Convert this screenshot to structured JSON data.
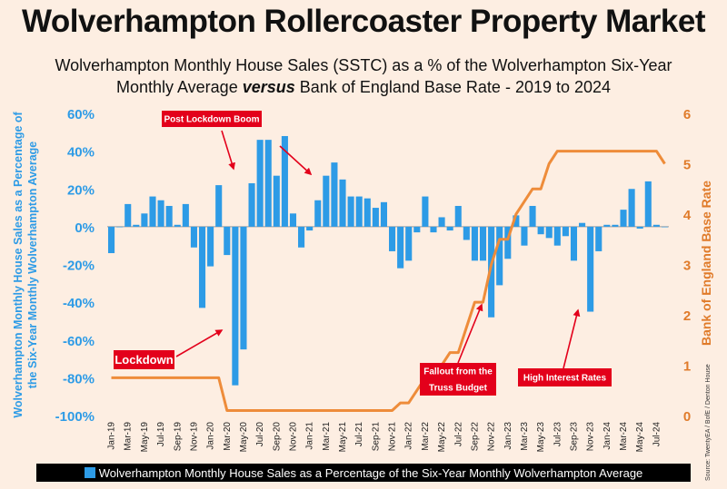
{
  "title": "Wolverhampton Rollercoaster Property Market",
  "subtitle": {
    "line1": "Wolverhampton Monthly House Sales (SSTC) as a % of the Wolverhampton Six-Year",
    "line2_pre": "Monthly Average",
    "line2_em": "versus",
    "line2_post": "Bank of England Base Rate - 2019 to 2024"
  },
  "source": "Source: TwentyEA / BofE / Denton House",
  "colors": {
    "bars": "#2d9be6",
    "rate_line": "#ee8c3a",
    "annotation": "#e3001b",
    "left_axis": "#2d9be6",
    "right_axis": "#e07b2a"
  },
  "chart_data": {
    "type": "bar",
    "title": "Wolverhampton Rollercoaster Property Market",
    "ylabel": "Wolverhampton Monthly House Sales as a Percentage of the Six-Year Monthly Wolverhampton Average",
    "y2label": "Bank of England Base Rate",
    "ylim": [
      -100,
      60
    ],
    "y2lim": [
      0,
      6
    ],
    "yticks": [
      "60%",
      "40%",
      "20%",
      "0%",
      "-20%",
      "-40%",
      "-60%",
      "-80%",
      "-100%"
    ],
    "y2ticks": [
      "6",
      "5",
      "4",
      "3",
      "2",
      "1",
      "0"
    ],
    "xtick_labels": [
      "Jan-19",
      "Mar-19",
      "May-19",
      "Jul-19",
      "Sep-19",
      "Nov-19",
      "Jan-20",
      "Mar-20",
      "May-20",
      "Jul-20",
      "Sep-20",
      "Nov-20",
      "Jan-21",
      "Mar-21",
      "May-21",
      "Jul-21",
      "Sep-21",
      "Nov-21",
      "Jan-22",
      "Mar-22",
      "May-22",
      "Jul-22",
      "Sep-22",
      "Nov-22",
      "Jan-23",
      "Mar-23",
      "May-23",
      "Jul-23",
      "Sep-23",
      "Nov-23",
      "Jan-24",
      "Mar-24",
      "May-24",
      "Jul-24"
    ],
    "categories": [
      "Jan-19",
      "Feb-19",
      "Mar-19",
      "Apr-19",
      "May-19",
      "Jun-19",
      "Jul-19",
      "Aug-19",
      "Sep-19",
      "Oct-19",
      "Nov-19",
      "Dec-19",
      "Jan-20",
      "Feb-20",
      "Mar-20",
      "Apr-20",
      "May-20",
      "Jun-20",
      "Jul-20",
      "Aug-20",
      "Sep-20",
      "Oct-20",
      "Nov-20",
      "Dec-20",
      "Jan-21",
      "Feb-21",
      "Mar-21",
      "Apr-21",
      "May-21",
      "Jun-21",
      "Jul-21",
      "Aug-21",
      "Sep-21",
      "Oct-21",
      "Nov-21",
      "Dec-21",
      "Jan-22",
      "Feb-22",
      "Mar-22",
      "Apr-22",
      "May-22",
      "Jun-22",
      "Jul-22",
      "Aug-22",
      "Sep-22",
      "Oct-22",
      "Nov-22",
      "Dec-22",
      "Jan-23",
      "Feb-23",
      "Mar-23",
      "Apr-23",
      "May-23",
      "Jun-23",
      "Jul-23",
      "Aug-23",
      "Sep-23",
      "Oct-23",
      "Nov-23",
      "Dec-23",
      "Jan-24",
      "Feb-24",
      "Mar-24",
      "Apr-24",
      "May-24",
      "Jun-24",
      "Jul-24",
      "Aug-24"
    ],
    "series": [
      {
        "name": "Wolverhampton Monthly House Sales as a Percentage of the Six-Year Monthly Wolverhampton Average",
        "type": "bar",
        "axis": "left",
        "values": [
          -14,
          0,
          12,
          1,
          7,
          16,
          14,
          11,
          1,
          12,
          -11,
          -43,
          -21,
          22,
          -15,
          -84,
          -65,
          23,
          46,
          46,
          27,
          48,
          7,
          -11,
          -2,
          14,
          27,
          34,
          25,
          16,
          16,
          15,
          10,
          13,
          -13,
          -22,
          -18,
          -3,
          16,
          -3,
          5,
          -2,
          11,
          -7,
          -18,
          -18,
          -48,
          -31,
          -17,
          6,
          -10,
          11,
          -4,
          -6,
          -10,
          -5,
          -18,
          2,
          -45,
          -13,
          1,
          1,
          9,
          20,
          -1,
          24,
          1,
          0
        ]
      },
      {
        "name": "Bank of England Base Rate",
        "type": "line",
        "axis": "right",
        "values": [
          0.75,
          0.75,
          0.75,
          0.75,
          0.75,
          0.75,
          0.75,
          0.75,
          0.75,
          0.75,
          0.75,
          0.75,
          0.75,
          0.75,
          0.1,
          0.1,
          0.1,
          0.1,
          0.1,
          0.1,
          0.1,
          0.1,
          0.1,
          0.1,
          0.1,
          0.1,
          0.1,
          0.1,
          0.1,
          0.1,
          0.1,
          0.1,
          0.1,
          0.1,
          0.1,
          0.25,
          0.25,
          0.5,
          0.75,
          0.75,
          1.0,
          1.25,
          1.25,
          1.75,
          2.25,
          2.25,
          3.0,
          3.5,
          3.5,
          4.0,
          4.25,
          4.5,
          4.5,
          5.0,
          5.25,
          5.25,
          5.25,
          5.25,
          5.25,
          5.25,
          5.25,
          5.25,
          5.25,
          5.25,
          5.25,
          5.25,
          5.25,
          5.0
        ]
      }
    ],
    "annotations": [
      {
        "text": "Post Lockdown Boom"
      },
      {
        "text": "Lockdown"
      },
      {
        "text": "Fallout from the Truss Budget"
      },
      {
        "text": "High Interest Rates"
      }
    ],
    "legend": "bottom"
  }
}
